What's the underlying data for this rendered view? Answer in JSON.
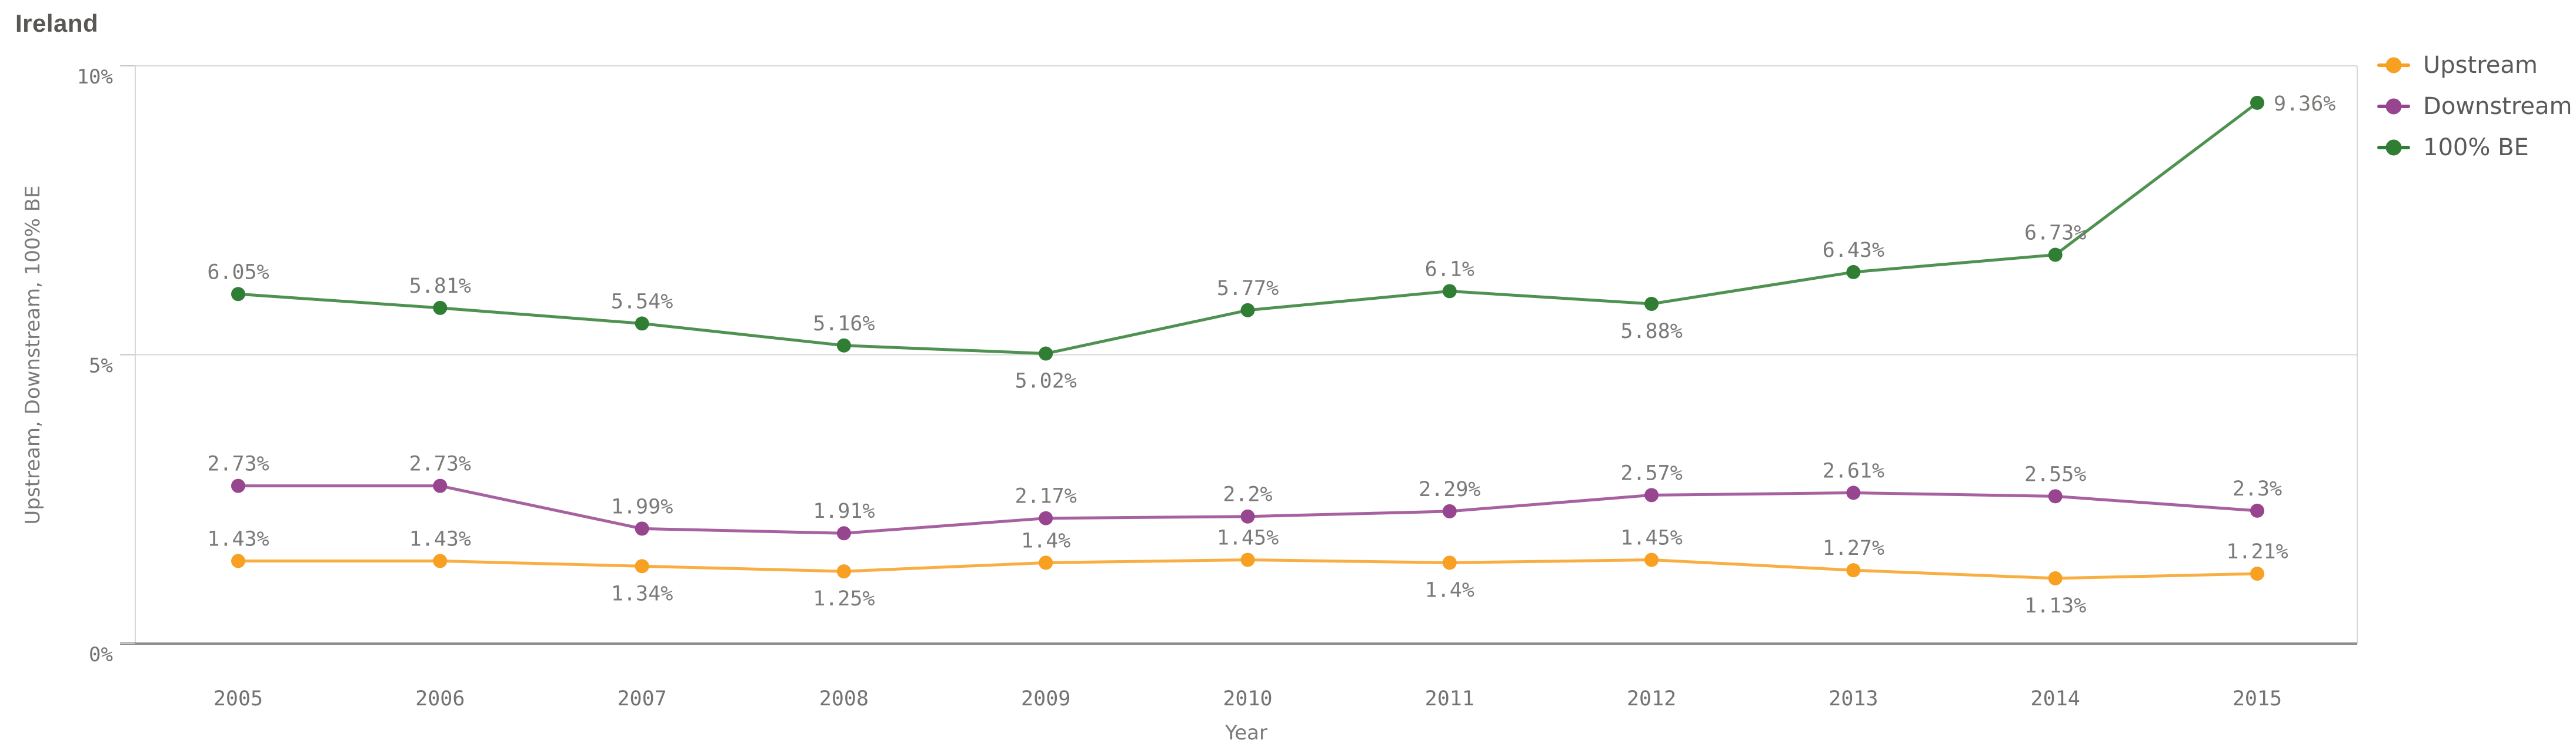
{
  "title": "Ireland",
  "x_axis": {
    "title": "Year"
  },
  "y_axis": {
    "title": "Upstream, Downstream, 100% BE",
    "ticks": [
      {
        "label": "0%",
        "value": 0
      },
      {
        "label": "5%",
        "value": 5
      },
      {
        "label": "10%",
        "value": 10
      }
    ],
    "range": [
      0,
      10
    ]
  },
  "colors": {
    "axis_line": "#8f8e8d",
    "gridline": "#d8d7d6",
    "tick_mark": "#c6c5c4",
    "tick_label": "#757371",
    "data_label": "#7b7a78",
    "title_text": "#595755",
    "legend_text": "#5a5a58"
  },
  "chart_data": {
    "type": "line",
    "x": [
      "2005",
      "2006",
      "2007",
      "2008",
      "2009",
      "2010",
      "2011",
      "2012",
      "2013",
      "2014",
      "2015"
    ],
    "xlabel": "Year",
    "ylabel": "Upstream, Downstream, 100% BE",
    "ylim": [
      0,
      10
    ],
    "grid": "horizontal gridlines at 5% and 10%",
    "legend_position": "top-right",
    "series": [
      {
        "name": "Upstream",
        "color": "#f7a021",
        "values": [
          1.43,
          1.43,
          1.34,
          1.25,
          1.4,
          1.45,
          1.4,
          1.45,
          1.27,
          1.13,
          1.21
        ],
        "labels": [
          "1.43%",
          "1.43%",
          "1.34%",
          "1.25%",
          "1.4%",
          "1.45%",
          "1.4%",
          "1.45%",
          "1.27%",
          "1.13%",
          "1.21%"
        ],
        "label_pos": [
          "above",
          "above",
          "below",
          "below",
          "above",
          "above",
          "below",
          "above",
          "above",
          "below",
          "above"
        ]
      },
      {
        "name": "Downstream",
        "color": "#98458f",
        "values": [
          2.73,
          2.73,
          1.99,
          1.91,
          2.17,
          2.2,
          2.29,
          2.57,
          2.61,
          2.55,
          2.3
        ],
        "labels": [
          "2.73%",
          "2.73%",
          "1.99%",
          "1.91%",
          "2.17%",
          "2.2%",
          "2.29%",
          "2.57%",
          "2.61%",
          "2.55%",
          "2.3%"
        ],
        "label_pos": [
          "above",
          "above",
          "above",
          "above",
          "above",
          "above",
          "above",
          "above",
          "above",
          "above",
          "above"
        ]
      },
      {
        "name": "100% BE",
        "color": "#2f7e33",
        "values": [
          6.05,
          5.81,
          5.54,
          5.16,
          5.02,
          5.77,
          6.1,
          5.88,
          6.43,
          6.73,
          9.36
        ],
        "labels": [
          "6.05%",
          "5.81%",
          "5.54%",
          "5.16%",
          "5.02%",
          "5.77%",
          "6.1%",
          "5.88%",
          "6.43%",
          "6.73%",
          "9.36%"
        ],
        "label_pos": [
          "above",
          "above",
          "above",
          "above",
          "below",
          "above",
          "above",
          "below",
          "above",
          "above",
          "right"
        ]
      }
    ]
  }
}
